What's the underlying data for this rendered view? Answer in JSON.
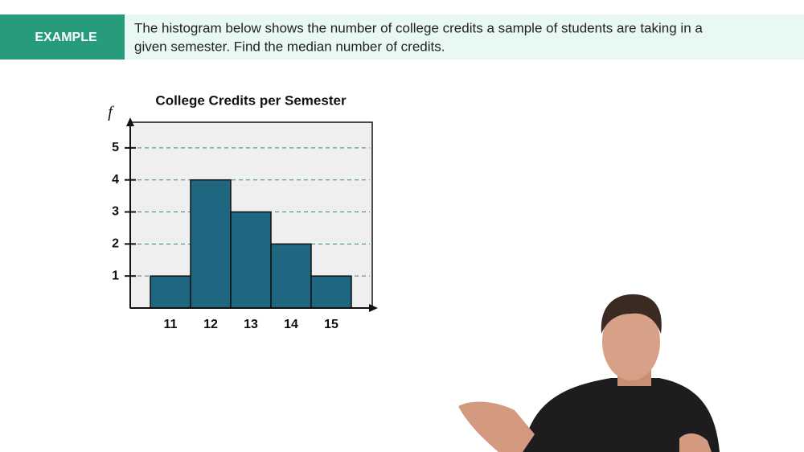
{
  "header": {
    "badge": "EXAMPLE",
    "lines": [
      "The histogram below shows the number of college credits a sample of students are taking in a",
      "given semester. Find the median number of credits."
    ]
  },
  "chart_data": {
    "type": "bar",
    "title": "College Credits per Semester",
    "y_label": "f",
    "categories": [
      "11",
      "12",
      "13",
      "14",
      "15"
    ],
    "values": [
      1,
      4,
      3,
      2,
      1
    ],
    "color": "#1f6680",
    "ylim": [
      0,
      5.8
    ],
    "yticks": [
      1,
      2,
      3,
      4,
      5
    ],
    "grid": true
  }
}
